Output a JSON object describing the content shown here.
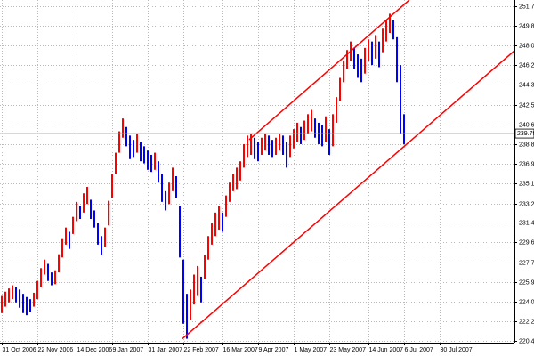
{
  "chart_data": {
    "type": "hl-bars",
    "up_color": "#ff0000",
    "down_color": "#0000ff",
    "channel_color": "#ff0000",
    "grid": true,
    "xlim": [
      -0.5,
      144
    ],
    "ylim": [
      220.4,
      251.7
    ],
    "xticks": [
      {
        "value": 0,
        "label": "31 Oct 2006"
      },
      {
        "value": 10,
        "label": "22 Nov 2006"
      },
      {
        "value": 21,
        "label": "14 Dec 2006"
      },
      {
        "value": 31,
        "label": "9 Jan 2007"
      },
      {
        "value": 41,
        "label": "31 Jan 2007"
      },
      {
        "value": 51,
        "label": "22 Feb 2007"
      },
      {
        "value": 62,
        "label": "16 Mar 2007"
      },
      {
        "value": 72,
        "label": "9 Apr 2007"
      },
      {
        "value": 82,
        "label": "1 May 2007"
      },
      {
        "value": 92,
        "label": "23 May 2007"
      },
      {
        "value": 103,
        "label": "14 Jun 2007"
      },
      {
        "value": 113,
        "label": "6 Jul 2007"
      },
      {
        "value": 123,
        "label": "30 Jul 2007"
      }
    ],
    "yticks": [
      {
        "value": 251.7,
        "label": "251.70"
      },
      249.85,
      {
        "value": 248,
        "label": "248.00"
      },
      {
        "value": 246.2,
        "label": "246.20"
      },
      244.35,
      {
        "value": 242.5,
        "label": "242.50"
      },
      240.65,
      {
        "value": 238.8,
        "label": "238.80"
      },
      236.95,
      {
        "value": 235.1,
        "label": "235.10"
      },
      233.25,
      231.45,
      {
        "value": 229.6,
        "label": "229.60"
      },
      227.75,
      {
        "value": 225.9,
        "label": "225.90"
      },
      224.05,
      {
        "value": 222.2,
        "label": "222.20"
      },
      {
        "value": 220.4,
        "label": "220.40"
      }
    ],
    "last_price": 239.79,
    "high": [
      224.6,
      225.0,
      225.3,
      225.6,
      225.4,
      225.2,
      224.8,
      224.5,
      224.3,
      224.9,
      226.0,
      227.2,
      228.0,
      227.6,
      226.8,
      227.0,
      228.5,
      230.0,
      231.0,
      230.6,
      232.0,
      233.4,
      233.0,
      234.2,
      234.8,
      233.6,
      232.6,
      231.4,
      230.2,
      231.0,
      233.5,
      236.0,
      238.0,
      240.0,
      241.2,
      240.4,
      239.6,
      239.2,
      239.8,
      239.0,
      238.6,
      238.2,
      237.8,
      238.0,
      237.2,
      236.0,
      234.4,
      235.2,
      236.6,
      235.8,
      233.0,
      228.0,
      224.8,
      225.2,
      226.6,
      227.4,
      226.4,
      228.4,
      230.2,
      231.4,
      232.4,
      233.0,
      232.4,
      234.0,
      235.2,
      236.0,
      236.6,
      237.2,
      238.8,
      239.6,
      239.8,
      239.4,
      239.0,
      239.4,
      239.8,
      239.6,
      239.2,
      239.4,
      239.8,
      239.6,
      239.0,
      239.6,
      240.2,
      240.8,
      240.4,
      241.0,
      241.6,
      242.0,
      241.2,
      240.8,
      240.6,
      241.4,
      240.2,
      241.6,
      243.2,
      245.0,
      246.6,
      247.6,
      248.4,
      247.8,
      247.2,
      246.8,
      247.8,
      248.6,
      248.4,
      249.0,
      248.4,
      249.6,
      250.4,
      251.0,
      250.4,
      248.8,
      246.2,
      241.6
    ],
    "low": [
      223.0,
      223.6,
      224.0,
      224.3,
      224.0,
      223.5,
      223.0,
      222.8,
      223.1,
      223.6,
      224.3,
      225.4,
      226.6,
      226.0,
      225.6,
      225.7,
      226.8,
      228.2,
      229.4,
      229.0,
      230.4,
      231.6,
      231.8,
      232.4,
      233.2,
      231.8,
      231.0,
      229.4,
      228.4,
      229.2,
      231.2,
      233.8,
      236.0,
      238.0,
      239.4,
      238.6,
      237.4,
      237.6,
      238.0,
      237.2,
      237.0,
      236.4,
      236.2,
      236.4,
      235.2,
      233.4,
      232.6,
      233.2,
      234.4,
      233.8,
      228.2,
      222.0,
      220.6,
      222.4,
      223.8,
      224.6,
      224.0,
      226.2,
      228.0,
      229.4,
      230.2,
      230.8,
      230.6,
      232.0,
      233.4,
      234.4,
      234.6,
      235.4,
      236.6,
      237.6,
      237.8,
      237.4,
      237.2,
      237.8,
      238.2,
      237.8,
      237.6,
      237.8,
      238.2,
      237.8,
      236.6,
      237.6,
      238.4,
      239.0,
      238.8,
      239.2,
      239.8,
      240.0,
      239.4,
      238.8,
      238.6,
      239.0,
      237.8,
      238.6,
      240.8,
      242.8,
      244.6,
      245.8,
      246.6,
      245.8,
      245.0,
      244.6,
      245.4,
      246.6,
      246.2,
      246.8,
      246.0,
      247.4,
      248.4,
      249.2,
      248.6,
      244.6,
      239.8,
      238.8
    ],
    "channel": [
      {
        "x": [
          50.75,
          144
        ],
        "y": [
          220.6,
          247.54
        ]
      },
      {
        "x": [
          69.5,
          114.5
        ],
        "y": [
          239.22,
          252.29
        ]
      }
    ]
  }
}
